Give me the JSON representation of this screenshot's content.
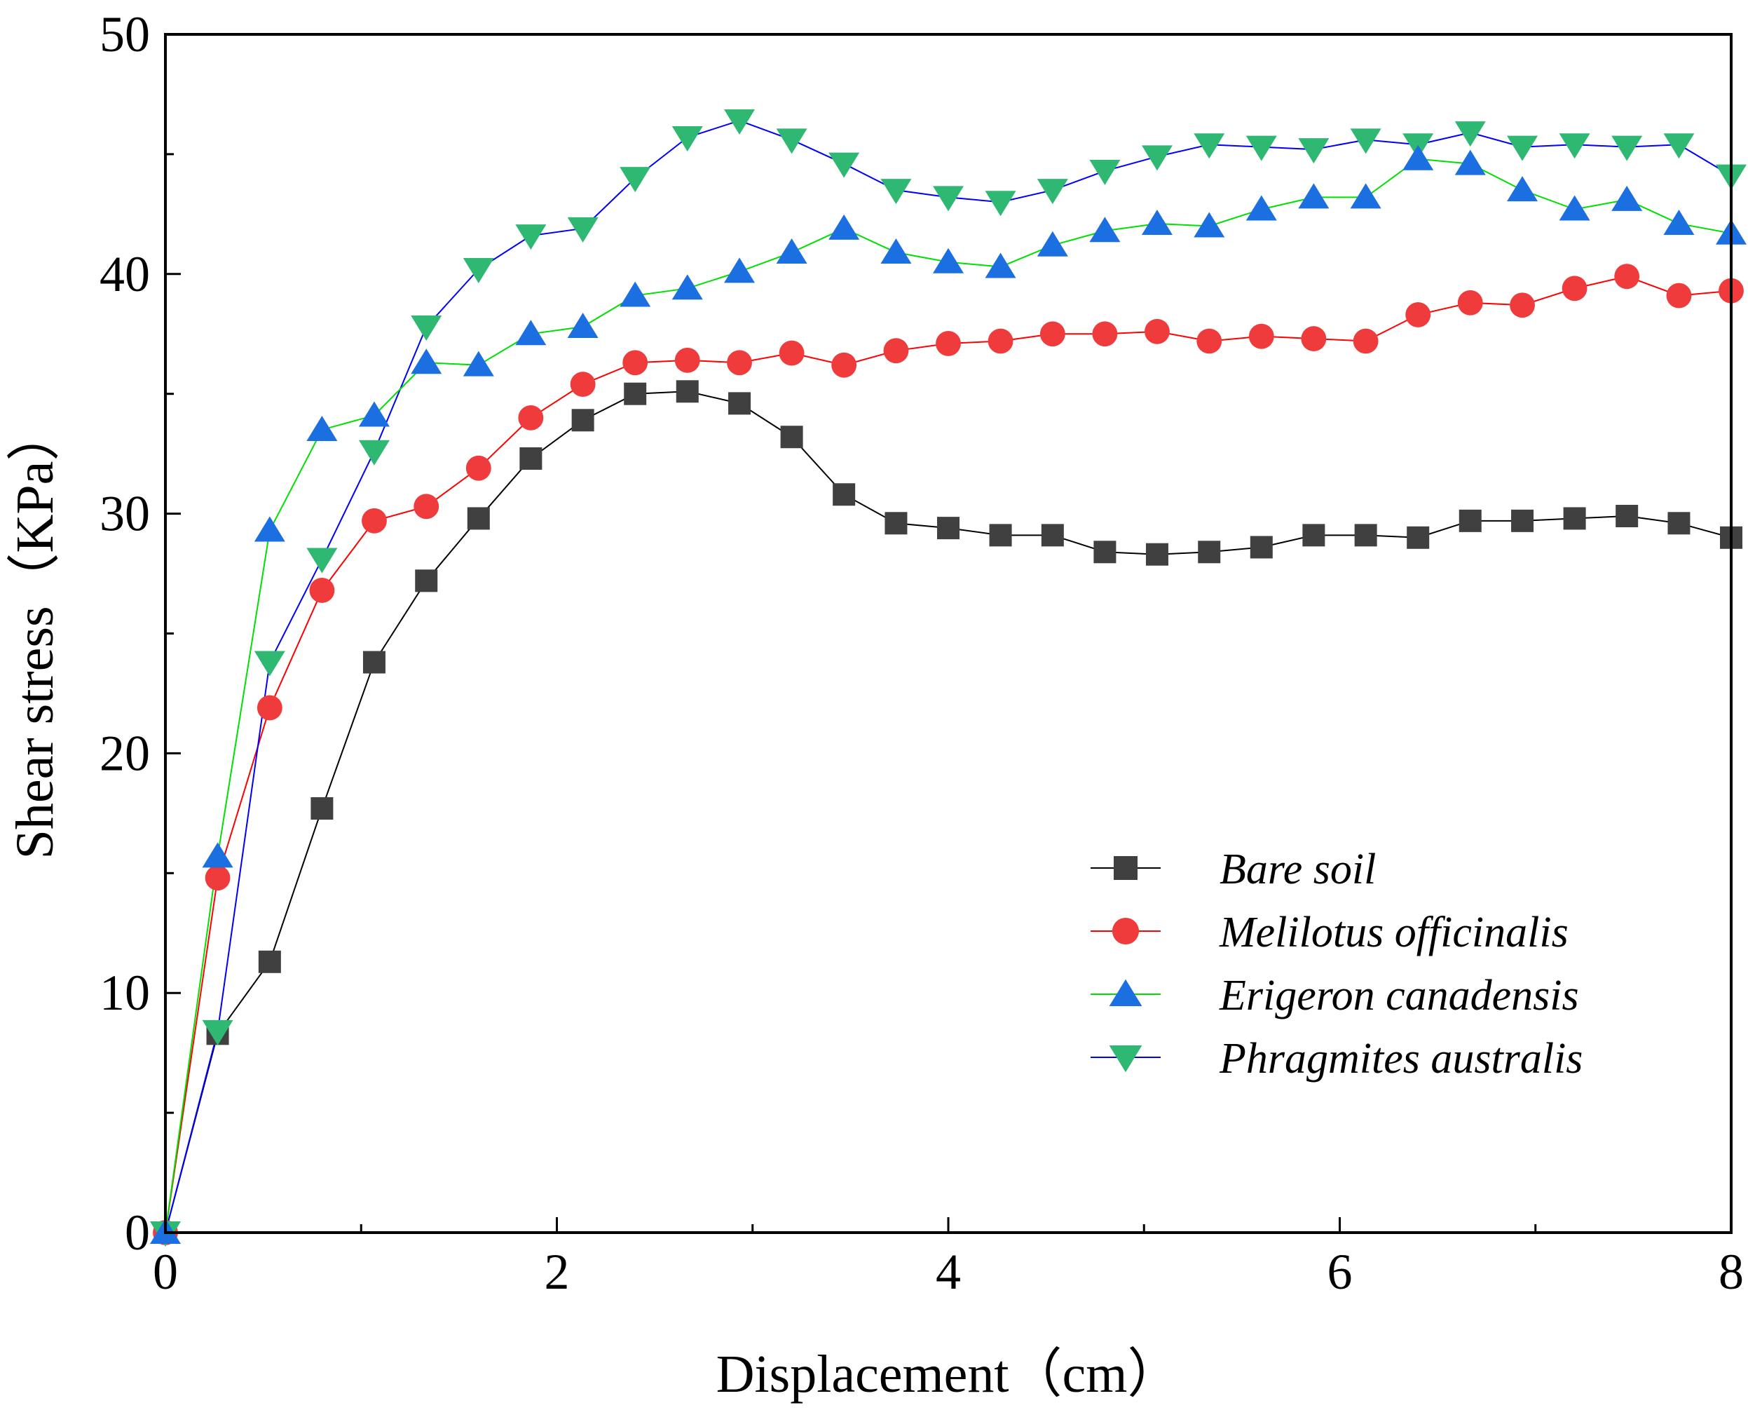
{
  "chart_data": {
    "type": "line",
    "title": "",
    "xlabel": "Displacement（cm）",
    "ylabel": "Shear stress（KPa）",
    "xlim": [
      0,
      8
    ],
    "ylim": [
      0,
      50
    ],
    "xticks": [
      0,
      2,
      4,
      6,
      8
    ],
    "yticks": [
      0,
      10,
      20,
      30,
      40,
      50
    ],
    "grid": false,
    "legend_position": "lower-right",
    "x": [
      0,
      0.267,
      0.533,
      0.8,
      1.067,
      1.333,
      1.6,
      1.867,
      2.133,
      2.4,
      2.667,
      2.933,
      3.2,
      3.467,
      3.733,
      4.0,
      4.267,
      4.533,
      4.8,
      5.067,
      5.333,
      5.6,
      5.867,
      6.133,
      6.4,
      6.667,
      6.933,
      7.2,
      7.467,
      7.733,
      8.0
    ],
    "series": [
      {
        "name": "Bare soil",
        "marker": "square",
        "marker_color": "#404040",
        "line_color": "#000000",
        "values": [
          0,
          8.3,
          11.3,
          17.7,
          23.8,
          27.2,
          29.8,
          32.3,
          33.9,
          35.0,
          35.1,
          34.6,
          33.2,
          30.8,
          29.6,
          29.4,
          29.1,
          29.1,
          28.4,
          28.3,
          28.4,
          28.6,
          29.1,
          29.1,
          29.0,
          29.7,
          29.7,
          29.8,
          29.9,
          29.6,
          29.0
        ]
      },
      {
        "name": "Melilotus officinalis",
        "marker": "circle",
        "marker_color": "#ef3b3b",
        "line_color": "#ff0000",
        "values": [
          0,
          14.8,
          21.9,
          26.8,
          29.7,
          30.3,
          31.9,
          34.0,
          35.4,
          36.3,
          36.4,
          36.3,
          36.7,
          36.2,
          36.8,
          37.1,
          37.2,
          37.5,
          37.5,
          37.6,
          37.2,
          37.4,
          37.3,
          37.2,
          38.3,
          38.8,
          38.7,
          39.4,
          39.9,
          39.1,
          39.3
        ]
      },
      {
        "name": "Erigeron canadensis",
        "marker": "triangle-up",
        "marker_color": "#1c6fe0",
        "line_color": "#00e000",
        "values": [
          0,
          15.7,
          29.3,
          33.5,
          34.1,
          36.3,
          36.2,
          37.5,
          37.8,
          39.1,
          39.4,
          40.1,
          40.9,
          41.9,
          40.9,
          40.5,
          40.3,
          41.2,
          41.8,
          42.1,
          42.0,
          42.7,
          43.2,
          43.2,
          44.8,
          44.6,
          43.5,
          42.7,
          43.1,
          42.1,
          41.7
        ]
      },
      {
        "name": "Phragmites australis",
        "marker": "triangle-down",
        "marker_color": "#2eb872",
        "line_color": "#0000ff",
        "values": [
          0,
          8.4,
          23.8,
          28.1,
          32.6,
          37.8,
          40.2,
          41.6,
          41.9,
          44.0,
          45.7,
          46.4,
          45.6,
          44.6,
          43.5,
          43.2,
          43.0,
          43.5,
          44.3,
          44.9,
          45.4,
          45.3,
          45.2,
          45.6,
          45.4,
          45.9,
          45.3,
          45.4,
          45.3,
          45.4,
          44.1
        ]
      }
    ]
  }
}
